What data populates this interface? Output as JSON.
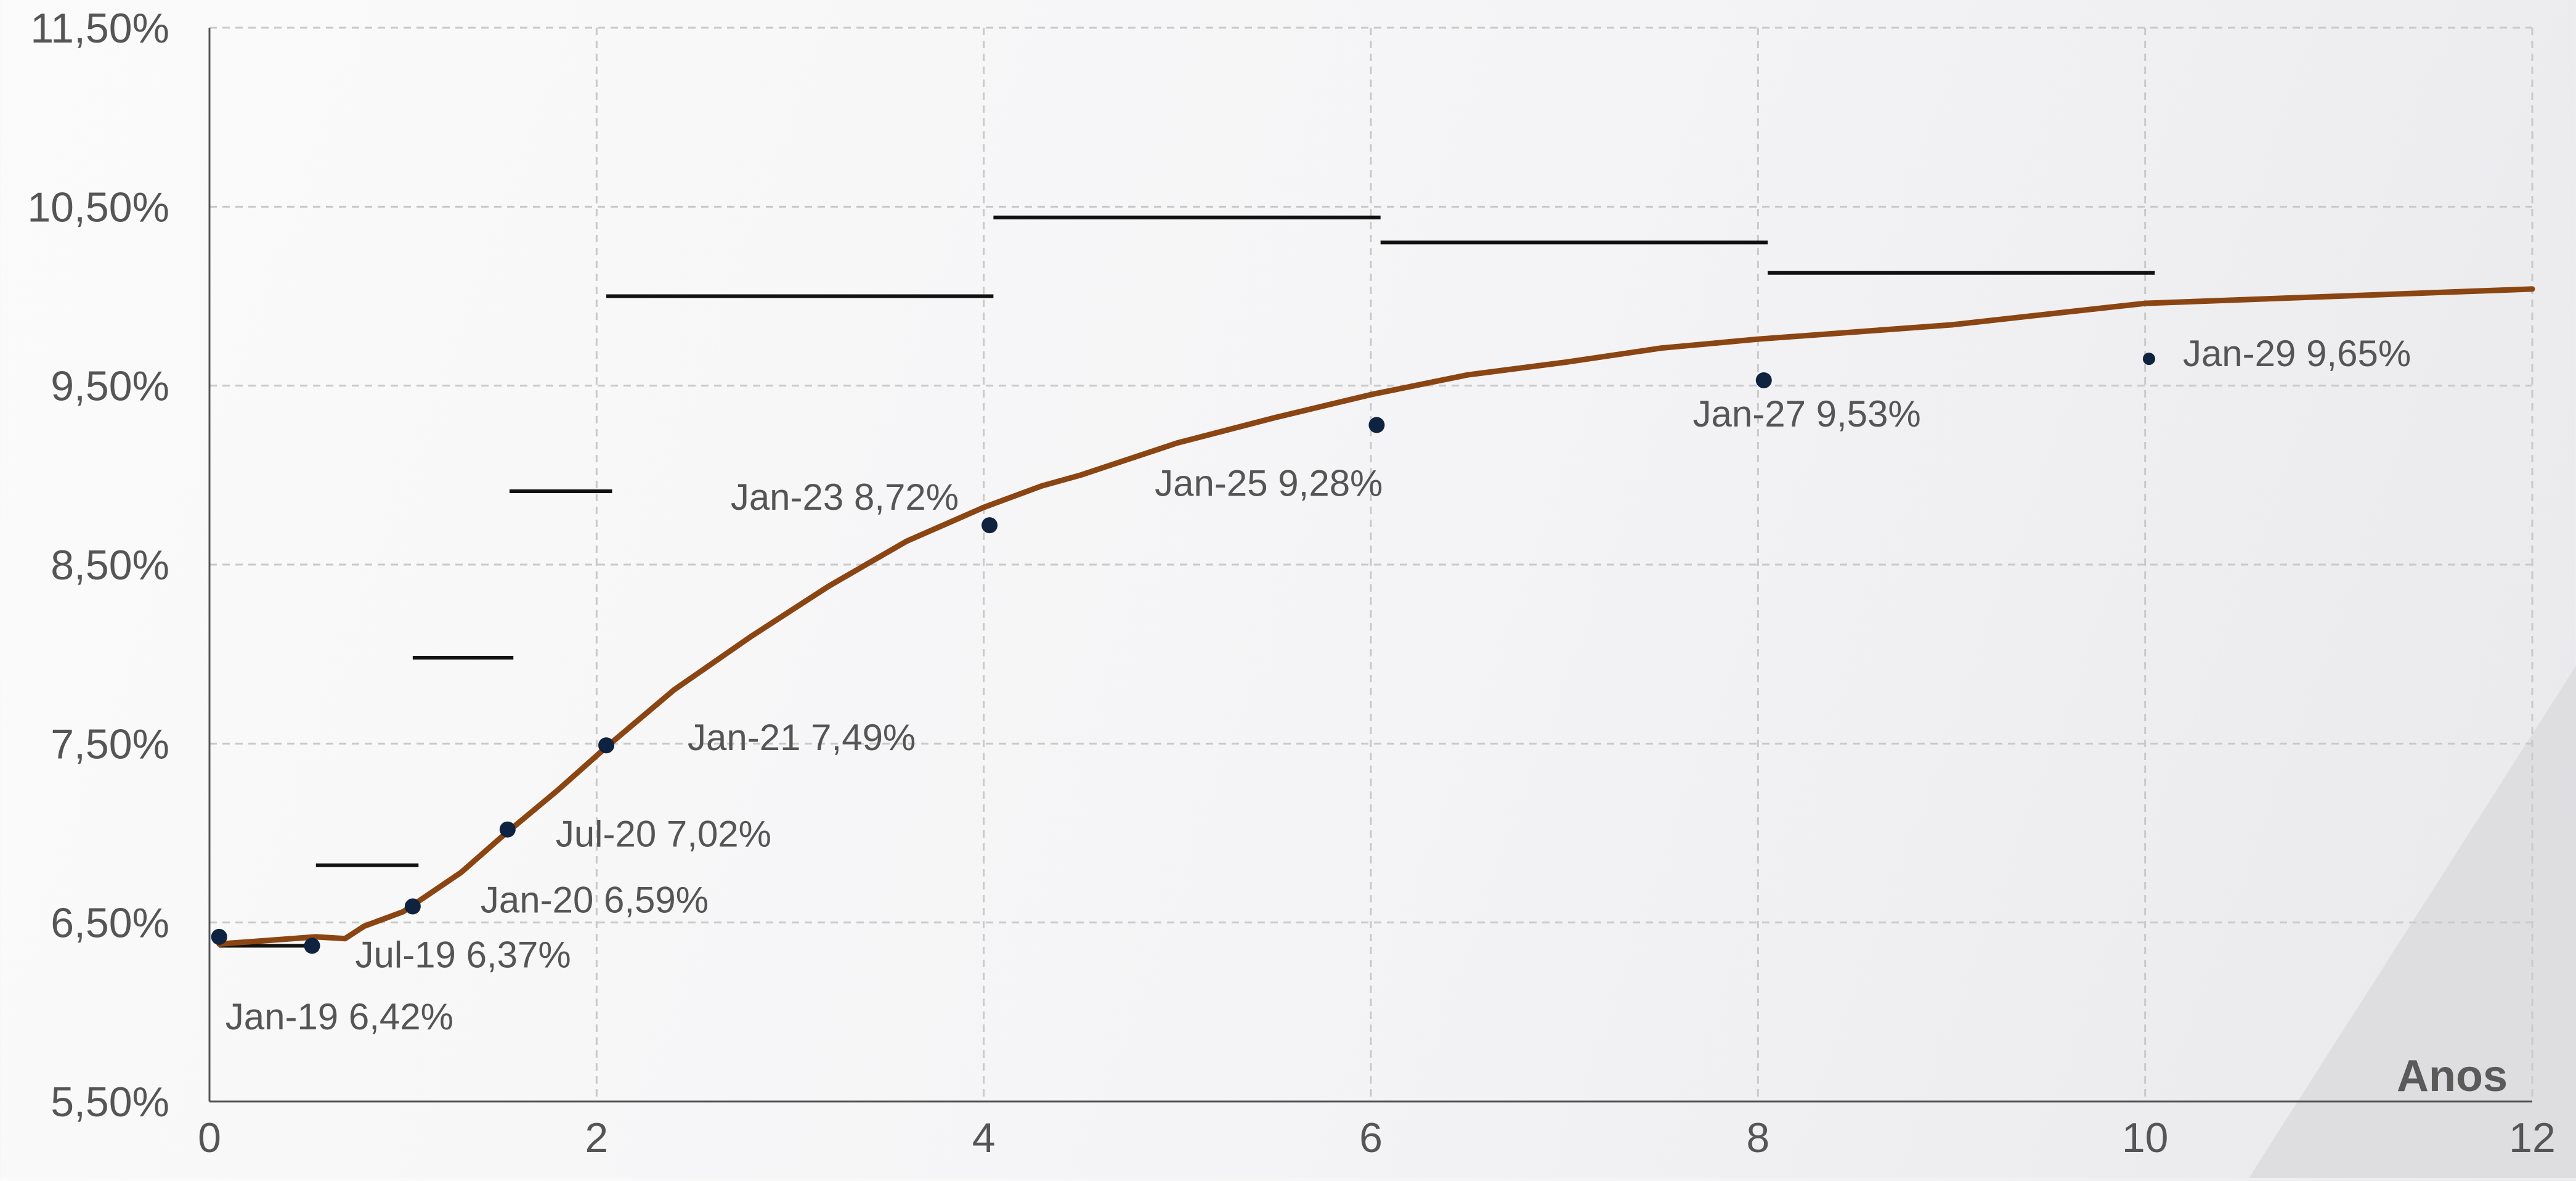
{
  "chart_data": {
    "type": "line",
    "xlabel": "Anos",
    "ylabel": "",
    "xlim": [
      0,
      12
    ],
    "ylim": [
      5.5,
      11.5
    ],
    "x_ticks": [
      "0",
      "2",
      "4",
      "6",
      "8",
      "10",
      "12"
    ],
    "y_ticks": [
      "5,50%",
      "6,50%",
      "7,50%",
      "8,50%",
      "9,50%",
      "10,50%",
      "11,50%"
    ],
    "grid": true,
    "colors": {
      "curve": "#8B4513",
      "points": "#0f2340",
      "forward_segments": "#111111",
      "text": "#555555"
    },
    "series": [
      {
        "type": "line",
        "x": [
          0.05,
          0.3,
          0.55,
          0.7,
          0.8,
          1.0,
          1.3,
          1.5,
          1.8,
          2.05,
          2.4,
          2.8,
          3.2,
          3.6,
          4.0,
          4.3,
          4.5,
          5.0,
          5.5,
          6.0,
          6.5,
          7.0,
          7.5,
          8.0,
          8.5,
          9.0,
          9.5,
          10.0,
          11.0,
          12.0
        ],
        "y": [
          6.38,
          6.4,
          6.42,
          6.41,
          6.48,
          6.56,
          6.78,
          6.97,
          7.24,
          7.48,
          7.8,
          8.1,
          8.38,
          8.63,
          8.82,
          8.94,
          9.0,
          9.18,
          9.32,
          9.45,
          9.56,
          9.63,
          9.71,
          9.76,
          9.8,
          9.84,
          9.9,
          9.96,
          10.0,
          10.04
        ]
      },
      {
        "type": "scatter",
        "x": [
          0.05,
          0.53,
          1.05,
          1.54,
          2.05,
          4.03,
          6.03,
          8.03,
          10.02
        ],
        "y": [
          6.42,
          6.37,
          6.59,
          7.02,
          7.49,
          8.72,
          9.28,
          9.53,
          9.65
        ],
        "labels": [
          "Jan-19 6,42%",
          "Jul-19 6,37%",
          "Jan-20 6,59%",
          "Jul-20 7,02%",
          "Jan-21 7,49%",
          "Jan-23 8,72%",
          "Jan-25 9,28%",
          "Jan-27 9,53%",
          "Jan-29 9,65%"
        ]
      },
      {
        "type": "segments",
        "segments": [
          {
            "x": [
              0.05,
              0.53
            ],
            "y": 6.37
          },
          {
            "x": 0.55,
            "x_end": 1.08,
            "y": 6.82
          },
          {
            "x": 1.05,
            "x_end": 1.57,
            "y": 7.98
          },
          {
            "x": 1.55,
            "x_end": 2.08,
            "y": 8.91
          },
          {
            "x": 2.05,
            "x_end": 4.05,
            "y": 10.0
          },
          {
            "x": 4.05,
            "x_end": 6.05,
            "y": 10.44
          },
          {
            "x": 6.05,
            "x_end": 8.05,
            "y": 10.3
          },
          {
            "x": 8.05,
            "x_end": 10.05,
            "y": 10.13
          }
        ]
      }
    ]
  }
}
